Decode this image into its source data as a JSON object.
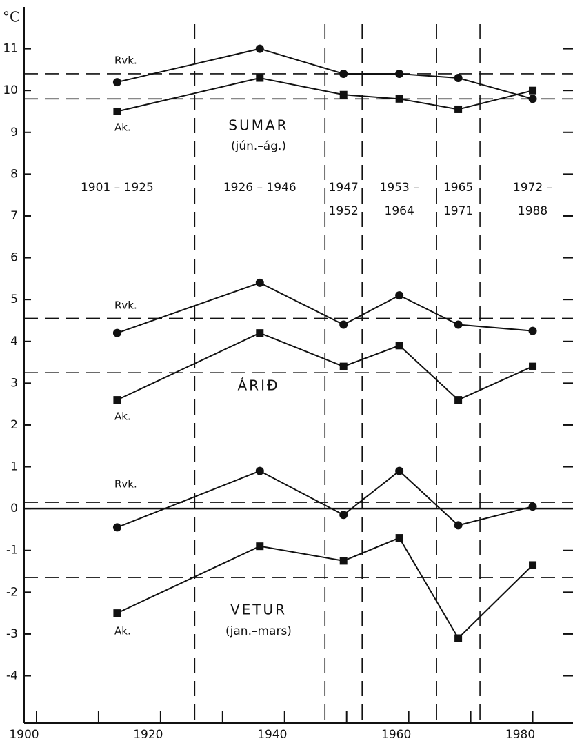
{
  "chart_data": {
    "type": "line",
    "y_label": "°C",
    "xlim": [
      1898,
      1986.5
    ],
    "xticks": [
      1900,
      1920,
      1940,
      1960,
      1980
    ],
    "xminorticks": [
      1910,
      1930,
      1950,
      1970
    ],
    "ylim": [
      -5.13,
      12
    ],
    "yticks": [
      -4,
      -3,
      -2,
      -1,
      0,
      1,
      2,
      3,
      4,
      5,
      6,
      7,
      8,
      9,
      10,
      11
    ],
    "x": [
      1913,
      1936,
      1949.5,
      1958.5,
      1968,
      1980
    ],
    "period_bounds": [
      1925.5,
      1946.5,
      1952.5,
      1964.5,
      1971.5
    ],
    "periods": [
      [
        "1901 – 1925"
      ],
      [
        "1926 – 1946"
      ],
      [
        "1947",
        "1952"
      ],
      [
        "1953 –",
        "1964"
      ],
      [
        "1965",
        "1971"
      ],
      [
        "1972 –",
        "1988"
      ]
    ],
    "groups": [
      {
        "name": "SUMAR",
        "subtitle": "(jún.–ág.)",
        "series": [
          {
            "name": "Rvk.",
            "marker": "circle",
            "color": "#111",
            "values": [
              10.2,
              11.0,
              10.4,
              10.4,
              10.3,
              9.8
            ],
            "mean": 10.4
          },
          {
            "name": "Ak.",
            "marker": "square",
            "color": "#111",
            "values": [
              9.5,
              10.3,
              9.9,
              9.8,
              9.55,
              10.0
            ],
            "mean": 9.8
          }
        ]
      },
      {
        "name": "ÁRIÐ",
        "series": [
          {
            "name": "Rvk.",
            "marker": "circle",
            "color": "#111",
            "values": [
              4.2,
              5.4,
              4.4,
              5.1,
              4.4,
              4.25
            ],
            "mean": 4.55
          },
          {
            "name": "Ak.",
            "marker": "square",
            "color": "#111",
            "values": [
              2.6,
              4.2,
              3.4,
              3.9,
              2.6,
              3.4
            ],
            "mean": 3.25
          }
        ]
      },
      {
        "name": "VETUR",
        "subtitle": "(jan.–mars)",
        "series": [
          {
            "name": "Rvk.",
            "marker": "circle",
            "color": "#111",
            "values": [
              -0.45,
              0.9,
              -0.15,
              0.9,
              -0.4,
              0.05
            ],
            "mean": 0.15
          },
          {
            "name": "Ak.",
            "marker": "square",
            "color": "#111",
            "values": [
              -2.5,
              -0.9,
              -1.25,
              -0.7,
              -3.1,
              -1.35
            ],
            "mean": -1.65
          }
        ]
      }
    ]
  }
}
